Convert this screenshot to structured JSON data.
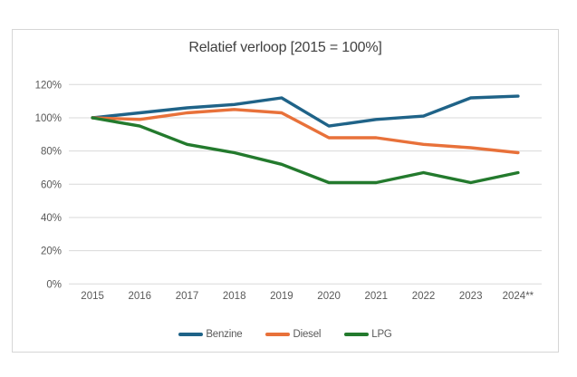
{
  "chart_data": {
    "type": "line",
    "title": "Relatief verloop [2015 = 100%]",
    "categories": [
      "2015",
      "2016",
      "2017",
      "2018",
      "2019",
      "2020",
      "2021",
      "2022",
      "2023",
      "2024**"
    ],
    "series": [
      {
        "name": "Benzine",
        "color": "#1f6388",
        "values": [
          100,
          103,
          106,
          108,
          112,
          95,
          99,
          101,
          112,
          113
        ]
      },
      {
        "name": "Diesel",
        "color": "#e8713a",
        "values": [
          100,
          99,
          103,
          105,
          103,
          88,
          88,
          84,
          82,
          79
        ]
      },
      {
        "name": "LPG",
        "color": "#237a2d",
        "values": [
          100,
          95,
          84,
          79,
          72,
          61,
          61,
          67,
          61,
          67
        ]
      }
    ],
    "y_ticks": [
      {
        "value": 0,
        "label": "0%"
      },
      {
        "value": 20,
        "label": "20%"
      },
      {
        "value": 40,
        "label": "40%"
      },
      {
        "value": 60,
        "label": "60%"
      },
      {
        "value": 80,
        "label": "80%"
      },
      {
        "value": 100,
        "label": "100%"
      },
      {
        "value": 120,
        "label": "120%"
      }
    ],
    "ylim": [
      0,
      120
    ],
    "grid": true,
    "legend_position": "bottom",
    "axis_mode": "categories-between-ticks"
  },
  "colors": {
    "background": "#ffffff",
    "frame_border": "#d6d6d6",
    "gridline": "#d9d9d9",
    "axis_text": "#595959",
    "title_text": "#404040"
  }
}
